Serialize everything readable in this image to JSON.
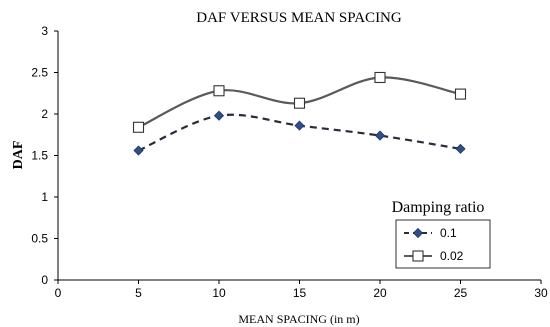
{
  "chart_data": {
    "type": "line",
    "title": "DAF VERSUS MEAN SPACING",
    "xlabel": "MEAN SPACING (in m)",
    "ylabel": "DAF",
    "xlim": [
      0,
      30
    ],
    "ylim": [
      0,
      3
    ],
    "xticks": [
      "0",
      "5",
      "10",
      "15",
      "20",
      "25",
      "30"
    ],
    "yticks": [
      "0",
      "0.5",
      "1",
      "1.5",
      "2",
      "2.5",
      "3"
    ],
    "grid": false,
    "legend": {
      "title": "Damping ratio",
      "placement": "bottom-right"
    },
    "series": [
      {
        "name": "0.1",
        "x": [
          5,
          10,
          15,
          20,
          25
        ],
        "y": [
          1.56,
          1.98,
          1.86,
          1.74,
          1.58
        ],
        "color": "#2f4f8a",
        "marker": "diamond",
        "line_style": "dashed",
        "line_color": "#2b2b3b"
      },
      {
        "name": "0.02",
        "x": [
          5,
          10,
          15,
          20,
          25
        ],
        "y": [
          1.84,
          2.28,
          2.13,
          2.44,
          2.24
        ],
        "color": "#ffffff",
        "marker": "square",
        "line_style": "solid",
        "line_color": "#5a5a5a"
      }
    ]
  }
}
